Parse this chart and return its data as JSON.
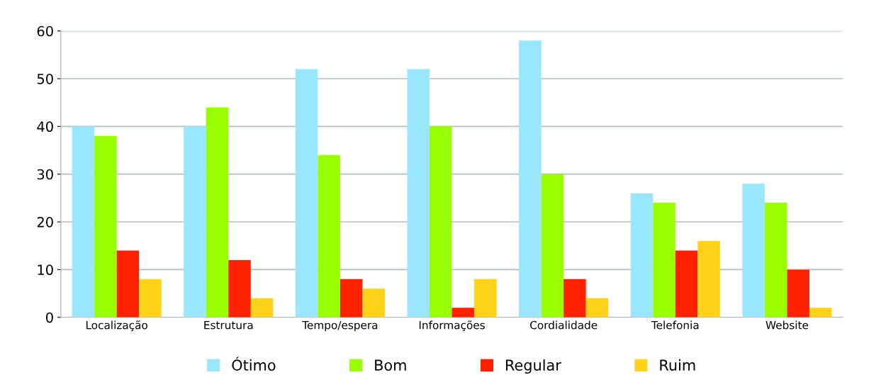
{
  "chart_data": {
    "type": "bar",
    "categories": [
      "Localização",
      "Estrutura",
      "Tempo/espera",
      "Informações",
      "Cordialidade",
      "Telefonia",
      "Website"
    ],
    "series": [
      {
        "name": "Ótimo",
        "color": "#99e6ff",
        "values": [
          40,
          40,
          52,
          52,
          58,
          26,
          28
        ]
      },
      {
        "name": "Bom",
        "color": "#99ff00",
        "values": [
          38,
          44,
          34,
          40,
          30,
          24,
          24
        ]
      },
      {
        "name": "Regular",
        "color": "#ff2200",
        "values": [
          14,
          12,
          8,
          2,
          8,
          14,
          10
        ]
      },
      {
        "name": "Ruim",
        "color": "#ffd21a",
        "values": [
          8,
          4,
          6,
          8,
          4,
          16,
          2
        ]
      }
    ],
    "ylim": [
      0,
      60
    ],
    "yticks": [
      0,
      10,
      20,
      30,
      40,
      50,
      60
    ],
    "grid": "y",
    "legend": "bottom"
  }
}
